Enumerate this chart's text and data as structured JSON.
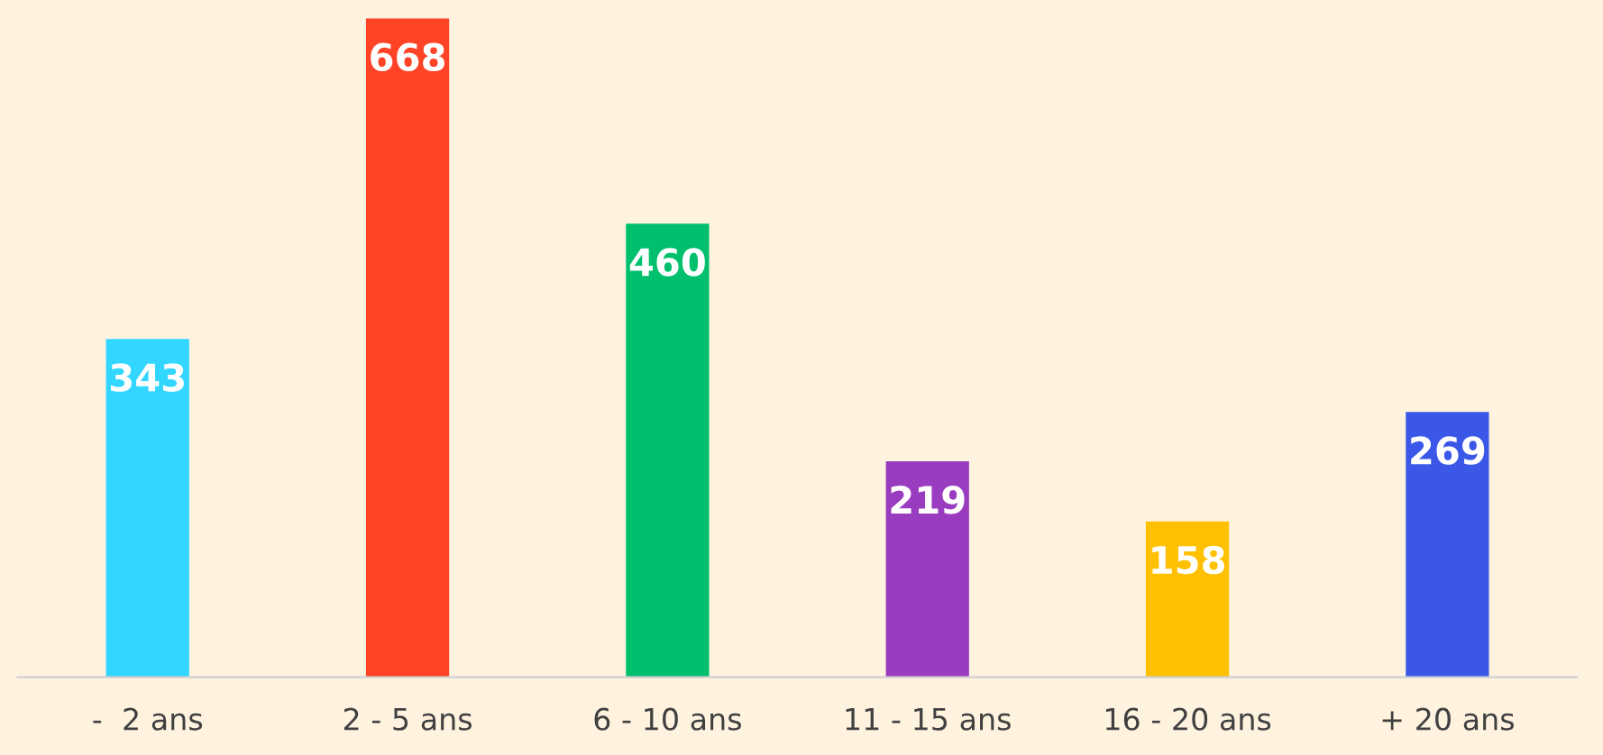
{
  "chart_data": {
    "type": "bar",
    "categories": [
      "-  2 ans",
      "2 - 5 ans",
      "6 - 10 ans",
      "11 - 15 ans",
      "16 - 20 ans",
      "+ 20 ans"
    ],
    "values": [
      343,
      668,
      460,
      219,
      158,
      269
    ],
    "colors": [
      "#33d6ff",
      "#ff4326",
      "#00c06d",
      "#9a3cbf",
      "#ffc000",
      "#3a57e8"
    ],
    "data_labels": true,
    "grid": false,
    "legend": false
  }
}
